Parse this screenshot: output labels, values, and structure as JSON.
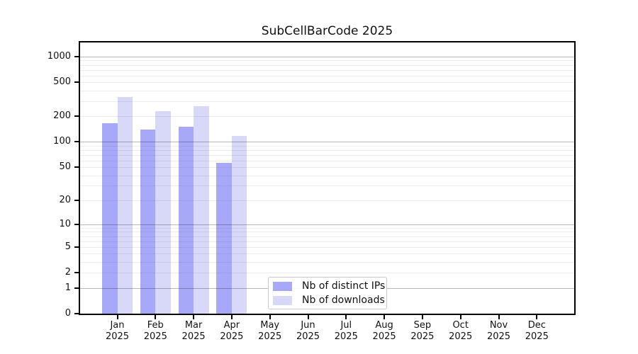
{
  "title": "SubCellBarCode 2025",
  "colors": {
    "series_ips": "#a8a8f8",
    "series_downloads": "#d8d8f8",
    "major_grid": "#b8b8b8",
    "minor_grid": "#ececec",
    "spine": "#000000",
    "background": "#ffffff",
    "text": "#111111"
  },
  "chart_data": {
    "type": "bar",
    "title": "SubCellBarCode 2025",
    "categories": [
      "Jan",
      "Feb",
      "Mar",
      "Apr",
      "May",
      "Jun",
      "Jul",
      "Aug",
      "Sep",
      "Oct",
      "Nov",
      "Dec"
    ],
    "category_year": "2025",
    "series": [
      {
        "name": "Nb of distinct IPs",
        "color": "#a8a8f8",
        "values": [
          165,
          140,
          150,
          57,
          null,
          null,
          null,
          null,
          null,
          null,
          null,
          null
        ]
      },
      {
        "name": "Nb of downloads",
        "color": "#d8d8f8",
        "values": [
          335,
          230,
          260,
          118,
          null,
          null,
          null,
          null,
          null,
          null,
          null,
          null
        ]
      }
    ],
    "xlabel": "",
    "ylabel": "",
    "y_axis": {
      "scale": "log1p",
      "tick_values": [
        0,
        1,
        2,
        5,
        10,
        20,
        50,
        100,
        200,
        500,
        1000
      ],
      "major_gridline_values": [
        1,
        10,
        100,
        1000
      ],
      "minor_gridline_decades": [
        1,
        10,
        100
      ],
      "ylim": [
        0,
        1450
      ]
    },
    "grid": "on",
    "legend_position": "lower-center"
  },
  "legend": {
    "items": [
      {
        "label": "Nb of distinct IPs",
        "color": "#a8a8f8"
      },
      {
        "label": "Nb of downloads",
        "color": "#d8d8f8"
      }
    ]
  }
}
